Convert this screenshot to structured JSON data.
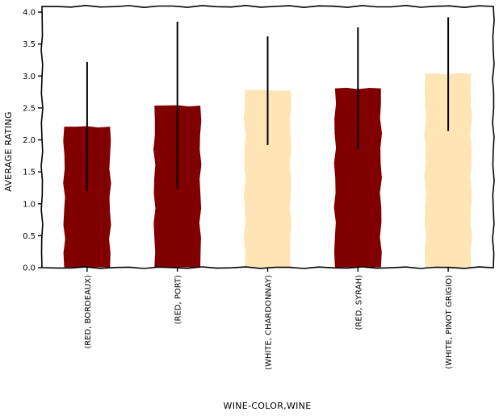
{
  "chart_data": {
    "type": "bar",
    "xlabel": "WINE-COLOR,WINE",
    "ylabel": "AVERAGE RATING",
    "ylim": [
      0,
      4.0
    ],
    "yticks": [
      "0.0",
      "0.5",
      "1.0",
      "1.5",
      "2.0",
      "2.5",
      "3.0",
      "3.5",
      "4.0"
    ],
    "categories": [
      "(RED, BORDEAUX)",
      "(RED, PORT)",
      "(WHITE, CHARDONNAY)",
      "(RED, SYRAH)",
      "(WHITE, PINOT GRIGIO)"
    ],
    "values": [
      2.2,
      2.53,
      2.77,
      2.8,
      3.03
    ],
    "error_low": [
      1.2,
      1.23,
      1.92,
      1.86,
      2.14
    ],
    "error_high": [
      3.22,
      3.85,
      3.62,
      3.76,
      3.92
    ],
    "bar_colors": [
      "#800000",
      "#800000",
      "#ffe4b5",
      "#800000",
      "#ffe4b5"
    ],
    "grid": false
  }
}
